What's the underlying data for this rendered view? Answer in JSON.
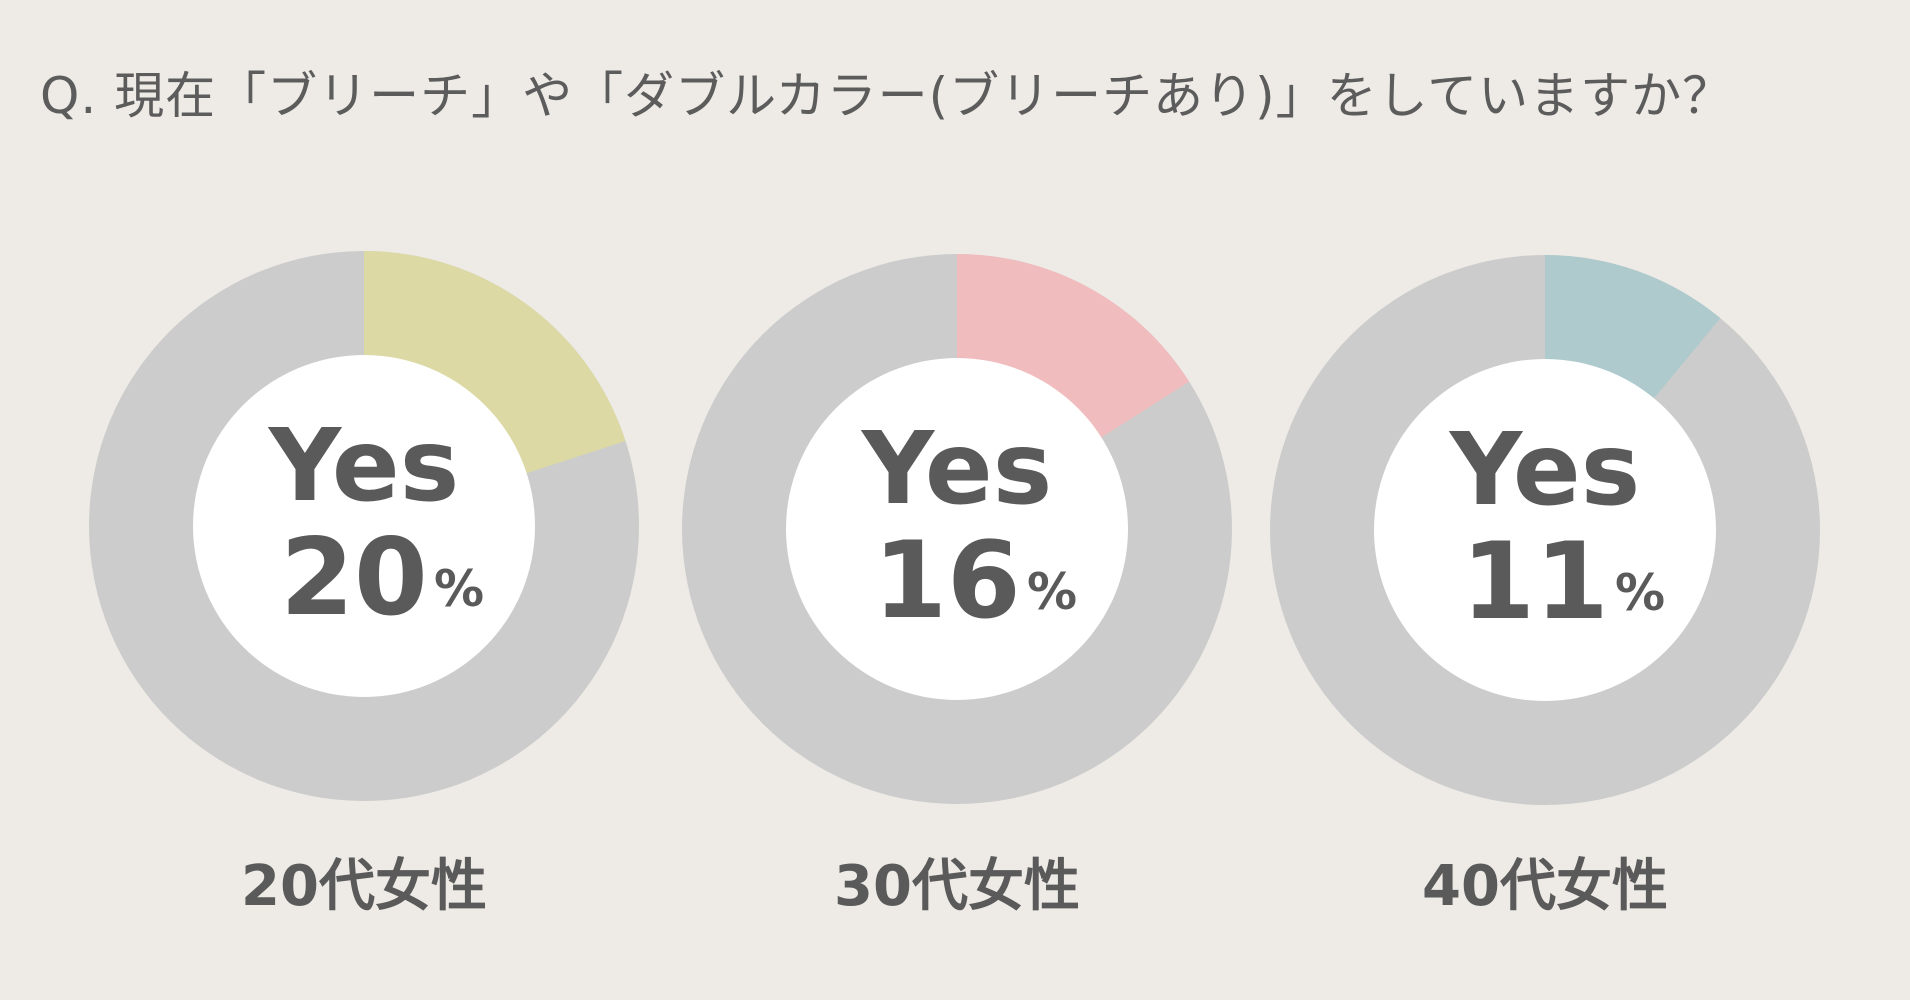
{
  "question": "Q. 現在「ブリーチ」や「ダブルカラー(ブリーチあり)」をしていますか？",
  "chart_data": {
    "type": "pie",
    "style": "donut",
    "center_label": "Yes",
    "unit": "%",
    "track_color": "#cccccc",
    "hole_color": "#ffffff",
    "charts": [
      {
        "category": "20代女性",
        "value": 20,
        "color": "#dcd9a5"
      },
      {
        "category": "30代女性",
        "value": 16,
        "color": "#f0bcbd"
      },
      {
        "category": "40代女性",
        "value": 11,
        "color": "#aecacd"
      }
    ]
  }
}
